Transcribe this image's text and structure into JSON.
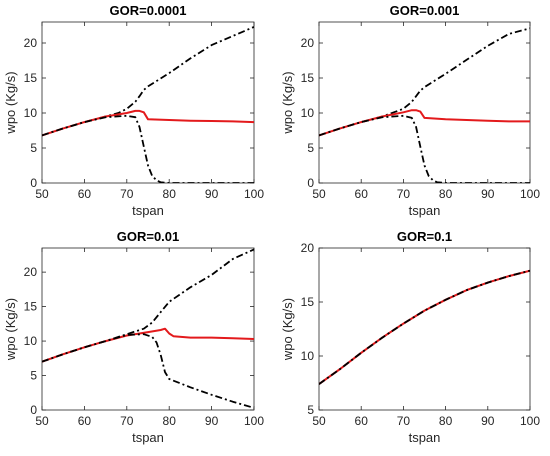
{
  "chart_data": [
    {
      "type": "line",
      "title": "GOR=0.0001",
      "xlabel": "tspan",
      "ylabel": "wpo (Kg/s)",
      "xlim": [
        50,
        100
      ],
      "ylim": [
        0,
        23
      ],
      "xticks": [
        50,
        60,
        70,
        80,
        90,
        100
      ],
      "yticks": [
        0,
        5,
        10,
        15,
        20
      ],
      "grid": false,
      "series": [
        {
          "color": "#000000",
          "style": "dashdot",
          "x": [
            50,
            55,
            60,
            65,
            68,
            70,
            72,
            73,
            74,
            75,
            80,
            85,
            90,
            95,
            100
          ],
          "y": [
            6.8,
            7.8,
            8.7,
            9.5,
            10.0,
            10.6,
            11.6,
            12.4,
            13.3,
            13.8,
            15.7,
            17.8,
            19.7,
            21.0,
            22.3
          ]
        },
        {
          "color": "#e31a1c",
          "style": "solid",
          "x": [
            50,
            55,
            60,
            65,
            70,
            72,
            73,
            74,
            75,
            80,
            85,
            90,
            95,
            100
          ],
          "y": [
            6.8,
            7.8,
            8.7,
            9.5,
            10.0,
            10.3,
            10.3,
            10.1,
            9.1,
            9.0,
            8.9,
            8.85,
            8.8,
            8.7
          ]
        },
        {
          "color": "#000000",
          "style": "dashdot",
          "x": [
            50,
            55,
            60,
            65,
            70,
            72,
            73,
            74,
            75,
            76,
            77,
            78,
            80,
            90,
            100
          ],
          "y": [
            6.8,
            7.8,
            8.7,
            9.4,
            9.6,
            9.4,
            8.0,
            5.2,
            2.5,
            1.0,
            0.4,
            0.1,
            0.0,
            0.0,
            0.0
          ]
        }
      ]
    },
    {
      "type": "line",
      "title": "GOR=0.001",
      "xlabel": "tspan",
      "ylabel": "wpo (Kg/s)",
      "xlim": [
        50,
        100
      ],
      "ylim": [
        0,
        23
      ],
      "xticks": [
        50,
        60,
        70,
        80,
        90,
        100
      ],
      "yticks": [
        0,
        5,
        10,
        15,
        20
      ],
      "grid": false,
      "series": [
        {
          "color": "#000000",
          "style": "dashdot",
          "x": [
            50,
            55,
            60,
            65,
            70,
            72,
            73,
            74,
            75,
            80,
            85,
            90,
            95,
            100
          ],
          "y": [
            6.8,
            7.8,
            8.7,
            9.5,
            10.6,
            11.6,
            12.4,
            13.2,
            13.7,
            15.6,
            17.6,
            19.6,
            21.3,
            22.1
          ]
        },
        {
          "color": "#e31a1c",
          "style": "solid",
          "x": [
            50,
            55,
            60,
            65,
            70,
            72,
            73,
            74,
            75,
            80,
            85,
            90,
            95,
            100
          ],
          "y": [
            6.8,
            7.8,
            8.7,
            9.5,
            10.1,
            10.4,
            10.4,
            10.2,
            9.3,
            9.1,
            9.0,
            8.9,
            8.8,
            8.8
          ]
        },
        {
          "color": "#000000",
          "style": "dashdot",
          "x": [
            50,
            55,
            60,
            65,
            70,
            72,
            73,
            74,
            75,
            76,
            77,
            78,
            80,
            90,
            100
          ],
          "y": [
            6.8,
            7.8,
            8.7,
            9.4,
            9.6,
            9.3,
            8.0,
            5.2,
            2.5,
            1.0,
            0.4,
            0.1,
            0.0,
            0.0,
            0.0
          ]
        }
      ]
    },
    {
      "type": "line",
      "title": "GOR=0.01",
      "xlabel": "tspan",
      "ylabel": "wpo (Kg/s)",
      "xlim": [
        50,
        100
      ],
      "ylim": [
        0,
        23.5
      ],
      "xticks": [
        50,
        60,
        70,
        80,
        90,
        100
      ],
      "yticks": [
        0,
        5,
        10,
        15,
        20
      ],
      "grid": false,
      "series": [
        {
          "color": "#000000",
          "style": "dashdot",
          "x": [
            50,
            55,
            60,
            65,
            70,
            74,
            76,
            78,
            80,
            85,
            90,
            95,
            100
          ],
          "y": [
            7.0,
            8.1,
            9.1,
            10.0,
            11.0,
            11.8,
            12.7,
            14.2,
            15.7,
            17.8,
            19.6,
            21.9,
            23.3
          ]
        },
        {
          "color": "#e31a1c",
          "style": "solid",
          "x": [
            50,
            55,
            60,
            65,
            70,
            75,
            78,
            79,
            80,
            81,
            85,
            90,
            95,
            100
          ],
          "y": [
            7.0,
            8.1,
            9.1,
            10.0,
            10.8,
            11.3,
            11.6,
            11.8,
            11.1,
            10.7,
            10.5,
            10.5,
            10.4,
            10.3
          ]
        },
        {
          "color": "#000000",
          "style": "dashdot",
          "x": [
            50,
            55,
            60,
            65,
            70,
            74,
            76,
            77,
            78,
            79,
            80,
            85,
            90,
            95,
            100
          ],
          "y": [
            7.0,
            8.1,
            9.1,
            10.0,
            10.9,
            11.0,
            10.6,
            9.8,
            8.0,
            5.5,
            4.5,
            3.3,
            2.2,
            1.2,
            0.3
          ]
        }
      ]
    },
    {
      "type": "line",
      "title": "GOR=0.1",
      "xlabel": "tspan",
      "ylabel": "wpo (Kg/s)",
      "xlim": [
        50,
        100
      ],
      "ylim": [
        5,
        20
      ],
      "xticks": [
        50,
        60,
        70,
        80,
        90,
        100
      ],
      "yticks": [
        5,
        10,
        15,
        20
      ],
      "grid": false,
      "series": [
        {
          "color": "#000000",
          "style": "dashdot",
          "x": [
            50,
            55,
            60,
            65,
            70,
            75,
            80,
            85,
            90,
            95,
            100
          ],
          "y": [
            7.4,
            8.8,
            10.3,
            11.7,
            13.0,
            14.2,
            15.2,
            16.1,
            16.8,
            17.4,
            17.9
          ]
        },
        {
          "color": "#e31a1c",
          "style": "solid",
          "x": [
            50,
            55,
            60,
            65,
            70,
            75,
            80,
            85,
            90,
            95,
            100
          ],
          "y": [
            7.4,
            8.8,
            10.3,
            11.7,
            13.0,
            14.2,
            15.2,
            16.1,
            16.8,
            17.4,
            17.9
          ]
        },
        {
          "color": "#000000",
          "style": "dashdot",
          "x": [
            50,
            55,
            60,
            65,
            70,
            75,
            80,
            85,
            90,
            95,
            100
          ],
          "y": [
            7.4,
            8.8,
            10.3,
            11.7,
            13.0,
            14.2,
            15.2,
            16.1,
            16.8,
            17.4,
            17.9
          ]
        }
      ]
    }
  ]
}
